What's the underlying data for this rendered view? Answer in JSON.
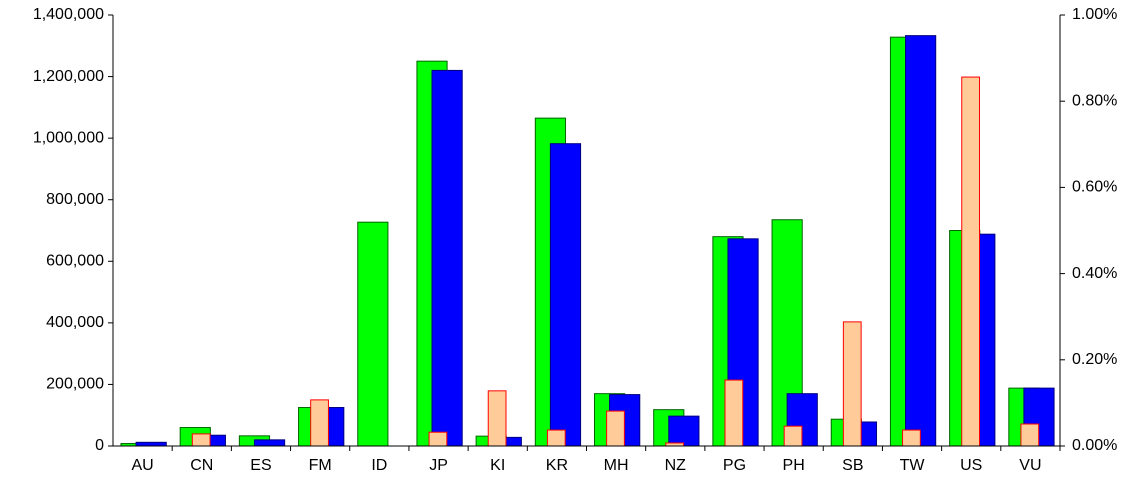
{
  "chart_data": {
    "type": "bar",
    "categories": [
      "AU",
      "CN",
      "ES",
      "FM",
      "ID",
      "JP",
      "KI",
      "KR",
      "MH",
      "NZ",
      "PG",
      "PH",
      "SB",
      "TW",
      "US",
      "VU"
    ],
    "series": [
      {
        "color": "#00ff00",
        "values": [
          8000,
          60000,
          33000,
          125000,
          727000,
          1250000,
          32000,
          1065000,
          170000,
          118000,
          680000,
          735000,
          87000,
          1328000,
          700000,
          188000
        ]
      },
      {
        "color": "#0000ff",
        "values": [
          12000,
          35000,
          20000,
          125000,
          null,
          1220000,
          28000,
          982000,
          167000,
          97000,
          673000,
          170000,
          78000,
          1333000,
          688000,
          188000
        ]
      },
      {
        "color": "#ffcc99",
        "axis": "y2",
        "values": [
          null,
          0.028,
          null,
          0.107,
          null,
          0.032,
          0.128,
          0.037,
          0.081,
          0.007,
          0.153,
          0.046,
          0.288,
          0.037,
          0.856,
          0.051
        ]
      }
    ],
    "ylim": [
      0,
      1400000
    ],
    "yticks": [
      0,
      {
        "value": 200000,
        "label": "200,000"
      },
      {
        "value": 400000,
        "label": "400,000"
      },
      {
        "value": 600000,
        "label": "600,000"
      },
      {
        "value": 800000,
        "label": "800,000"
      },
      {
        "value": 1000000,
        "label": "1,000,000"
      },
      {
        "value": 1200000,
        "label": "1,200,000"
      },
      {
        "value": 1400000,
        "label": "1,400,000"
      }
    ],
    "y2lim": [
      0,
      1.0
    ],
    "y2ticks": [
      {
        "value": 0,
        "label": "0.00%"
      },
      {
        "value": 0.2,
        "label": "0.20%"
      },
      {
        "value": 0.4,
        "label": "0.40%"
      },
      {
        "value": 0.6,
        "label": "0.60%"
      },
      {
        "value": 0.8,
        "label": "0.80%"
      },
      {
        "value": 1.0,
        "label": "1.00%"
      }
    ]
  }
}
